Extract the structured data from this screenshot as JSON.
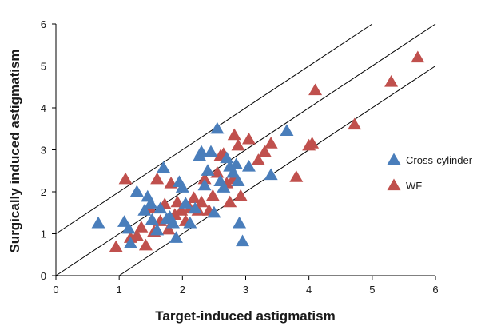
{
  "chart_data": {
    "type": "scatter",
    "title": "",
    "xlabel": "Target-induced astigmatism",
    "ylabel": "Surgically induced astigmatism",
    "xlim": [
      0,
      6
    ],
    "ylim": [
      0,
      6
    ],
    "xticks": [
      0,
      1,
      2,
      3,
      4,
      5,
      6
    ],
    "yticks": [
      0,
      1,
      2,
      3,
      4,
      5,
      6
    ],
    "grid": false,
    "legend_position": "right",
    "reference_lines": [
      {
        "slope": 1,
        "intercept": 1
      },
      {
        "slope": 1,
        "intercept": 0
      },
      {
        "slope": 1,
        "intercept": -1
      }
    ],
    "series": [
      {
        "name": "Cross-cylinder",
        "color": "#4a7ebb",
        "marker": "triangle",
        "points": [
          [
            0.67,
            1.25
          ],
          [
            1.08,
            1.28
          ],
          [
            1.15,
            1.12
          ],
          [
            1.18,
            0.77
          ],
          [
            1.28,
            2.0
          ],
          [
            1.4,
            1.55
          ],
          [
            1.45,
            1.88
          ],
          [
            1.5,
            1.72
          ],
          [
            1.52,
            1.33
          ],
          [
            1.6,
            1.08
          ],
          [
            1.65,
            1.6
          ],
          [
            1.7,
            2.57
          ],
          [
            1.75,
            1.35
          ],
          [
            1.8,
            1.4
          ],
          [
            1.85,
            1.25
          ],
          [
            1.9,
            0.9
          ],
          [
            1.95,
            2.23
          ],
          [
            2.0,
            2.1
          ],
          [
            2.05,
            1.72
          ],
          [
            2.12,
            1.25
          ],
          [
            2.2,
            1.6
          ],
          [
            2.27,
            2.85
          ],
          [
            2.3,
            2.95
          ],
          [
            2.35,
            2.15
          ],
          [
            2.4,
            2.5
          ],
          [
            2.45,
            2.95
          ],
          [
            2.5,
            1.5
          ],
          [
            2.55,
            3.5
          ],
          [
            2.6,
            2.25
          ],
          [
            2.65,
            2.1
          ],
          [
            2.7,
            2.8
          ],
          [
            2.75,
            2.6
          ],
          [
            2.8,
            2.45
          ],
          [
            2.85,
            2.65
          ],
          [
            2.88,
            2.25
          ],
          [
            2.9,
            1.25
          ],
          [
            2.95,
            0.82
          ],
          [
            3.05,
            2.6
          ],
          [
            3.4,
            2.4
          ],
          [
            3.65,
            3.45
          ]
        ]
      },
      {
        "name": "WF",
        "color": "#c0504d",
        "marker": "triangle",
        "points": [
          [
            0.95,
            0.68
          ],
          [
            1.1,
            2.3
          ],
          [
            1.18,
            0.9
          ],
          [
            1.28,
            0.95
          ],
          [
            1.35,
            1.15
          ],
          [
            1.42,
            0.72
          ],
          [
            1.48,
            1.62
          ],
          [
            1.55,
            1.05
          ],
          [
            1.6,
            2.3
          ],
          [
            1.65,
            1.3
          ],
          [
            1.72,
            1.7
          ],
          [
            1.78,
            1.1
          ],
          [
            1.82,
            2.2
          ],
          [
            1.88,
            1.45
          ],
          [
            1.92,
            1.75
          ],
          [
            1.98,
            1.55
          ],
          [
            2.05,
            1.3
          ],
          [
            2.12,
            1.6
          ],
          [
            2.18,
            1.85
          ],
          [
            2.25,
            1.55
          ],
          [
            2.3,
            1.75
          ],
          [
            2.35,
            2.3
          ],
          [
            2.42,
            1.55
          ],
          [
            2.48,
            1.9
          ],
          [
            2.55,
            2.45
          ],
          [
            2.6,
            2.85
          ],
          [
            2.65,
            2.9
          ],
          [
            2.7,
            2.2
          ],
          [
            2.75,
            1.75
          ],
          [
            2.8,
            2.3
          ],
          [
            2.82,
            3.35
          ],
          [
            2.88,
            3.1
          ],
          [
            2.92,
            1.9
          ],
          [
            3.05,
            3.25
          ],
          [
            3.2,
            2.75
          ],
          [
            3.3,
            2.95
          ],
          [
            3.4,
            3.15
          ],
          [
            3.8,
            2.35
          ],
          [
            4.0,
            3.1
          ],
          [
            4.05,
            3.15
          ],
          [
            4.1,
            4.42
          ],
          [
            4.72,
            3.6
          ],
          [
            5.3,
            4.62
          ],
          [
            5.72,
            5.2
          ]
        ]
      }
    ]
  }
}
